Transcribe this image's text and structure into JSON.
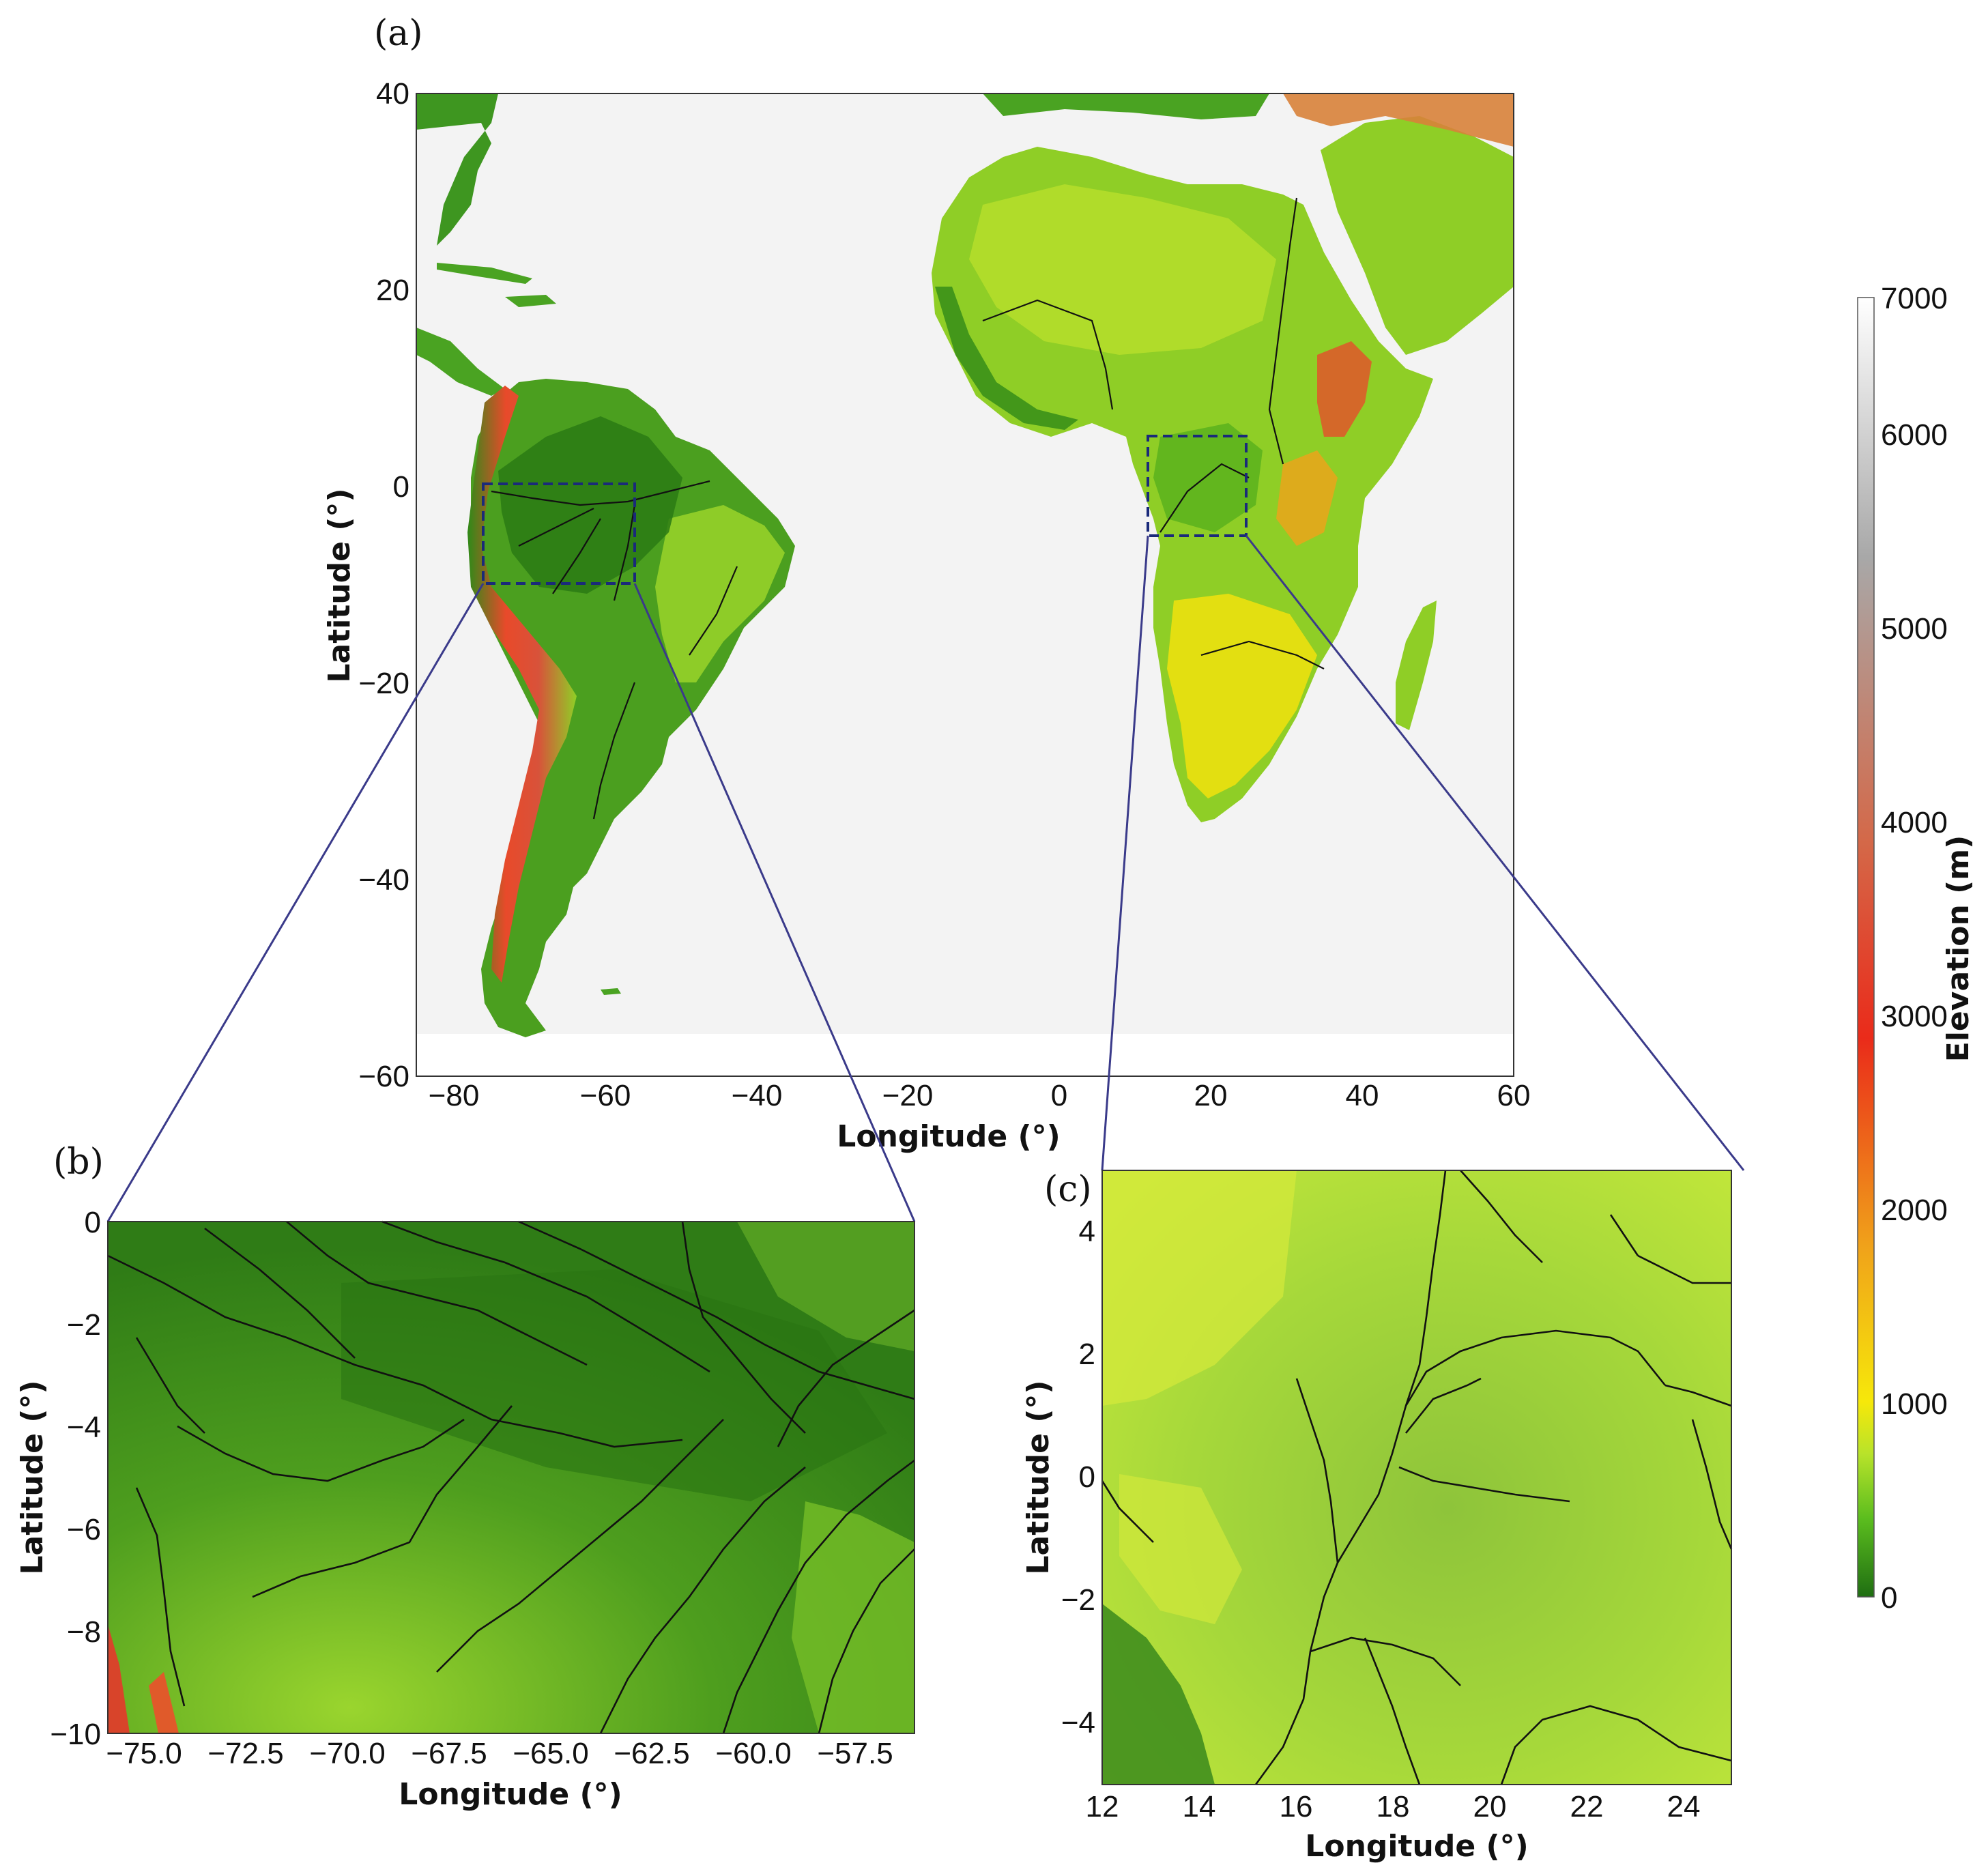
{
  "panels": {
    "a": {
      "label": "(a)",
      "xlabel": "Longitude (°)",
      "ylabel": "Latitude (°)",
      "xticks": [
        "−80",
        "−60",
        "−40",
        "−20",
        "0",
        "20",
        "40",
        "60"
      ],
      "yticks": [
        "40",
        "20",
        "0",
        "−20",
        "−40",
        "−60"
      ]
    },
    "b": {
      "label": "(b)",
      "xlabel": "Longitude (°)",
      "ylabel": "Latitude (°)",
      "xticks": [
        "−75.0",
        "−72.5",
        "−70.0",
        "−67.5",
        "−65.0",
        "−62.5",
        "−60.0",
        "−57.5"
      ],
      "yticks": [
        "0",
        "−2",
        "−4",
        "−6",
        "−8",
        "−10"
      ]
    },
    "c": {
      "label": "(c)",
      "xlabel": "Longitude (°)",
      "ylabel": "Latitude (°)",
      "xticks": [
        "12",
        "14",
        "16",
        "18",
        "20",
        "22",
        "24"
      ],
      "yticks": [
        "4",
        "2",
        "0",
        "−2",
        "−4"
      ]
    }
  },
  "colorbar": {
    "label": "Elevation (m)",
    "ticks": [
      "7000",
      "6000",
      "5000",
      "4000",
      "3000",
      "2000",
      "1000",
      "0"
    ],
    "colors": [
      "#1f6e12",
      "#5bbd1e",
      "#b8e32a",
      "#f6e80a",
      "#f0a21a",
      "#ea2b1a",
      "#d46848",
      "#a8a8a8",
      "#ffffff"
    ]
  },
  "map_data": {
    "panel_a_extent": {
      "lon": [
        -85,
        60
      ],
      "lat": [
        -60,
        40
      ]
    },
    "panel_b_extent": {
      "lon": [
        -76,
        -55.5
      ],
      "lat": [
        -10,
        0
      ]
    },
    "panel_c_extent": {
      "lon": [
        12,
        25
      ],
      "lat": [
        -5,
        5
      ]
    },
    "ocean_color": "#f3f3f3",
    "river_color": "#111111",
    "inset_box_color": "#1a2a7a"
  }
}
